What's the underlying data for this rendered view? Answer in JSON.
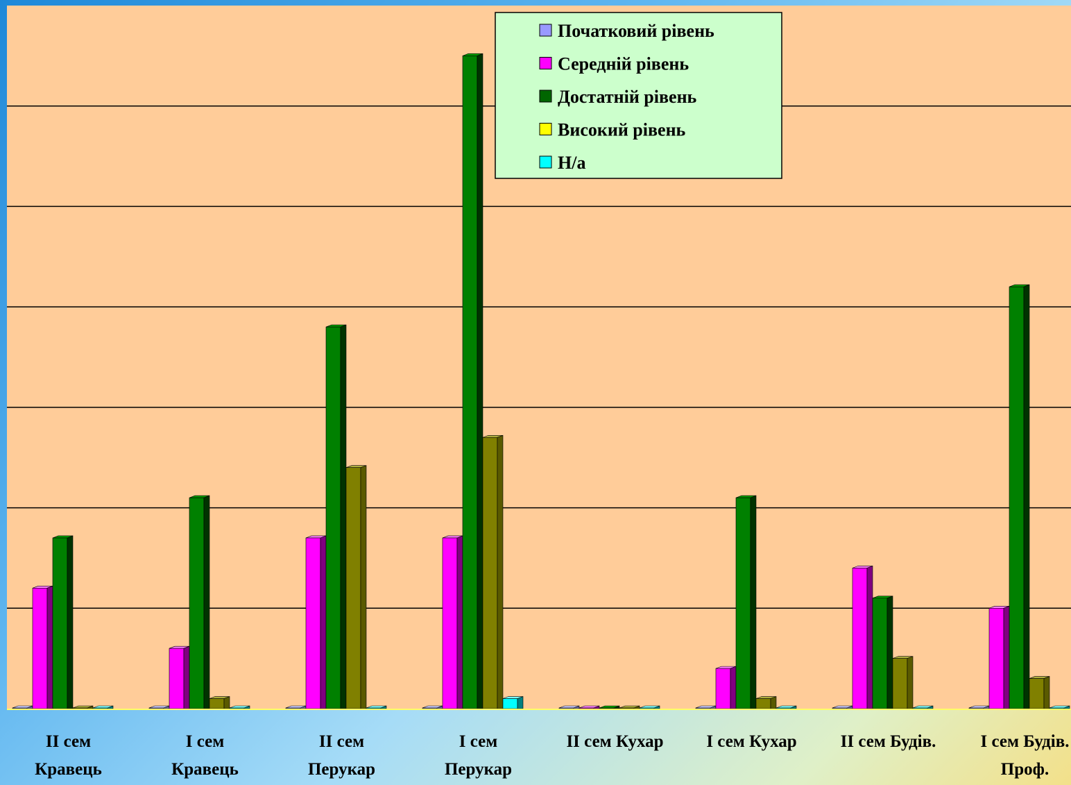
{
  "chart_data": {
    "type": "bar",
    "style": "3d-clustered-column",
    "categories": [
      [
        "II сем",
        "Кравець"
      ],
      [
        "I сем",
        "Кравець"
      ],
      [
        "II сем",
        "Перукар"
      ],
      [
        "I сем",
        "Перукар"
      ],
      [
        "II сем Кухар"
      ],
      [
        "I сем Кухар"
      ],
      [
        "II сем Будів."
      ],
      [
        "I сем Будів.",
        "Проф."
      ]
    ],
    "series": [
      {
        "name": "Початковий рівень",
        "values": [
          0,
          0,
          0,
          0,
          0,
          0,
          0,
          0
        ]
      },
      {
        "name": "Середній рівень",
        "values": [
          12,
          6,
          17,
          17,
          0,
          4,
          14,
          10
        ]
      },
      {
        "name": "Достатній рівень",
        "values": [
          17,
          21,
          38,
          65,
          0,
          21,
          11,
          42
        ]
      },
      {
        "name": "Високий рівень",
        "values": [
          0,
          1,
          24,
          27,
          0,
          1,
          5,
          3
        ]
      },
      {
        "name": "Н/а",
        "values": [
          0,
          0,
          0,
          1,
          0,
          0,
          0,
          0
        ]
      }
    ],
    "ylim": [
      0,
      70
    ],
    "gridlines": true,
    "legend_position": "top-center",
    "colors": {
      "plot_background": "#ffcc99",
      "legend_background": "#ccffcc",
      "grid": "#000000",
      "axis": "#ffff66",
      "series_front": [
        "#9999ff",
        "#ff00ff",
        "#008000",
        "#808000",
        "#00ffff"
      ],
      "series_side": [
        "#666699",
        "#800080",
        "#003300",
        "#5a5a00",
        "#008080"
      ],
      "series_top": [
        "#ccccff",
        "#ff80ff",
        "#00a000",
        "#b0b040",
        "#80ffff"
      ],
      "legend_swatch": [
        "#9999ff",
        "#ff00ff",
        "#006600",
        "#ffff00",
        "#00ffff"
      ]
    }
  }
}
